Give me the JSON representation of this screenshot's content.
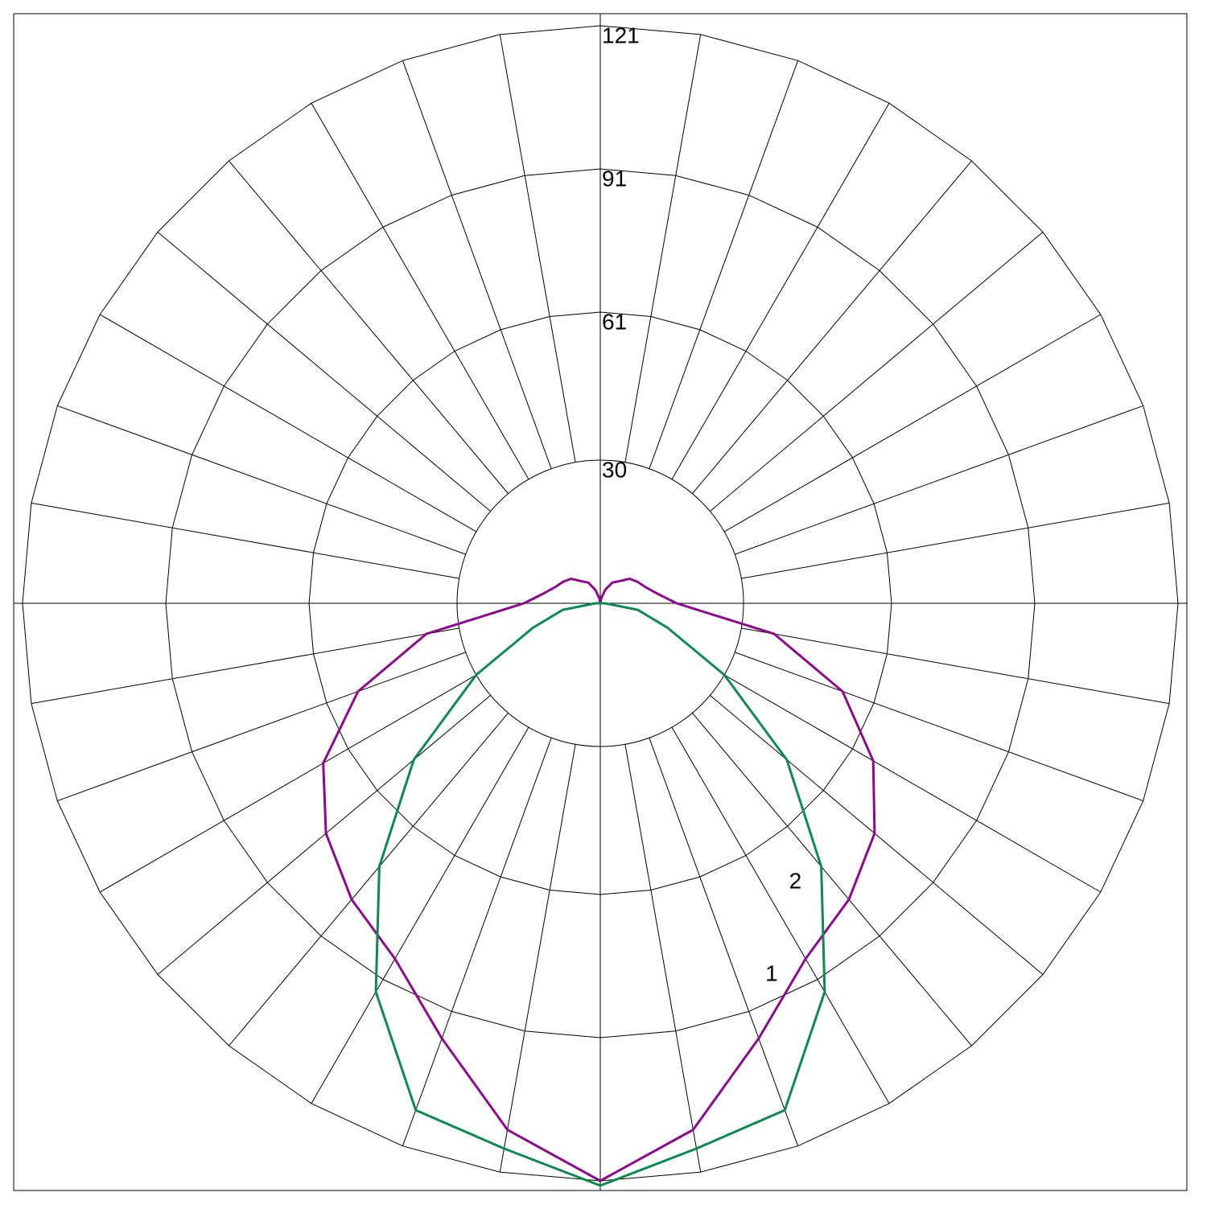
{
  "chart_data": {
    "type": "polar",
    "rlim": [
      0,
      121
    ],
    "rticks": [
      30,
      61,
      91,
      121
    ],
    "grid": true,
    "x": [
      -180,
      -170,
      -160,
      -150,
      -140,
      -130,
      -120,
      -110,
      -100,
      -90,
      -80,
      -70,
      -60,
      -50,
      -40,
      -30,
      -20,
      -10,
      0,
      10,
      20,
      30,
      40,
      50,
      60,
      70,
      80,
      90,
      100,
      110,
      120,
      130,
      140,
      150,
      160,
      170,
      180
    ],
    "series": [
      {
        "name": "1",
        "color": "#8b0a8b",
        "values": [
          0,
          1,
          3,
          5,
          6,
          8,
          9,
          10,
          12,
          16,
          37,
          54,
          67,
          75,
          81,
          86,
          97,
          112,
          121,
          112,
          97,
          86,
          81,
          75,
          66,
          54,
          37,
          16,
          12,
          10,
          9,
          8,
          6,
          5,
          3,
          1,
          0
        ]
      },
      {
        "name": "2",
        "color": "#0b8a4f",
        "values": [
          0,
          0,
          0,
          0,
          0,
          0,
          0,
          0,
          0,
          1,
          8,
          15,
          30,
          51,
          72,
          94,
          113,
          116,
          122,
          116,
          113,
          94,
          72,
          51,
          30,
          15,
          8,
          1,
          0,
          0,
          0,
          0,
          0,
          0,
          0,
          0,
          0
        ]
      }
    ]
  }
}
